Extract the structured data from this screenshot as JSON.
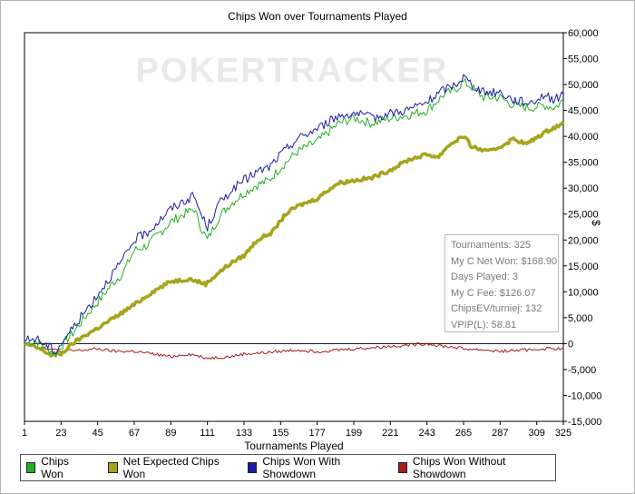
{
  "chart_data": {
    "type": "line",
    "title": "Chips Won over Tournaments Played",
    "xlabel": "Tournaments Played",
    "ylabel": "$",
    "xlim": [
      1,
      325
    ],
    "ylim": [
      -15000,
      60000
    ],
    "x_ticks": [
      1,
      23,
      45,
      67,
      89,
      111,
      133,
      155,
      177,
      199,
      221,
      243,
      265,
      287,
      309,
      325
    ],
    "y_ticks": [
      -15000,
      -10000,
      -5000,
      0,
      5000,
      10000,
      15000,
      20000,
      25000,
      30000,
      35000,
      40000,
      45000,
      50000,
      55000,
      60000
    ],
    "y_tick_labels": [
      "-15,000",
      "-10,000",
      "-5,000",
      "0",
      "5,000",
      "10,000",
      "15,000",
      "20,000",
      "25,000",
      "30,000",
      "35,000",
      "40,000",
      "45,000",
      "50,000",
      "55,000",
      "60,000"
    ],
    "legend_position": "bottom",
    "watermark": "POKERTRACKER",
    "series": [
      {
        "name": "Chips Won",
        "color": "#22b022",
        "points": [
          [
            1,
            0
          ],
          [
            8,
            500
          ],
          [
            15,
            -1000
          ],
          [
            20,
            -2000
          ],
          [
            23,
            -500
          ],
          [
            30,
            2000
          ],
          [
            37,
            5000
          ],
          [
            45,
            8000
          ],
          [
            55,
            12000
          ],
          [
            60,
            13500
          ],
          [
            67,
            18000
          ],
          [
            75,
            19000
          ],
          [
            89,
            23500
          ],
          [
            97,
            25000
          ],
          [
            103,
            26000
          ],
          [
            107,
            22500
          ],
          [
            111,
            20000
          ],
          [
            118,
            24500
          ],
          [
            125,
            27000
          ],
          [
            133,
            29000
          ],
          [
            140,
            30500
          ],
          [
            148,
            31500
          ],
          [
            155,
            34000
          ],
          [
            165,
            37000
          ],
          [
            177,
            39000
          ],
          [
            190,
            42500
          ],
          [
            199,
            43500
          ],
          [
            210,
            42500
          ],
          [
            221,
            43500
          ],
          [
            230,
            44000
          ],
          [
            243,
            45000
          ],
          [
            253,
            48000
          ],
          [
            260,
            49000
          ],
          [
            265,
            50500
          ],
          [
            270,
            49500
          ],
          [
            277,
            47500
          ],
          [
            287,
            47500
          ],
          [
            295,
            46000
          ],
          [
            305,
            45500
          ],
          [
            314,
            46000
          ],
          [
            320,
            45500
          ],
          [
            325,
            47000
          ]
        ]
      },
      {
        "name": "Net Expected Chips Won",
        "color": "#a5a51c",
        "points": [
          [
            1,
            0
          ],
          [
            10,
            -1000
          ],
          [
            17,
            -2200
          ],
          [
            23,
            -2000
          ],
          [
            30,
            0
          ],
          [
            37,
            1500
          ],
          [
            45,
            3000
          ],
          [
            55,
            5000
          ],
          [
            67,
            7500
          ],
          [
            78,
            10000
          ],
          [
            89,
            12000
          ],
          [
            100,
            12500
          ],
          [
            110,
            11500
          ],
          [
            117,
            13500
          ],
          [
            125,
            15500
          ],
          [
            133,
            17000
          ],
          [
            141,
            20000
          ],
          [
            150,
            21500
          ],
          [
            158,
            25000
          ],
          [
            165,
            26500
          ],
          [
            177,
            28000
          ],
          [
            185,
            30000
          ],
          [
            190,
            31000
          ],
          [
            199,
            31500
          ],
          [
            210,
            32000
          ],
          [
            221,
            33500
          ],
          [
            232,
            35500
          ],
          [
            243,
            36500
          ],
          [
            250,
            36000
          ],
          [
            255,
            38000
          ],
          [
            262,
            39500
          ],
          [
            265,
            40000
          ],
          [
            270,
            38000
          ],
          [
            280,
            37000
          ],
          [
            287,
            38000
          ],
          [
            295,
            39500
          ],
          [
            303,
            38500
          ],
          [
            310,
            40000
          ],
          [
            318,
            41500
          ],
          [
            325,
            42500
          ]
        ]
      },
      {
        "name": "Chips Won With Showdown",
        "color": "#1c1ca5",
        "points": [
          [
            1,
            500
          ],
          [
            8,
            1000
          ],
          [
            15,
            -500
          ],
          [
            20,
            -1500
          ],
          [
            23,
            0
          ],
          [
            30,
            3000
          ],
          [
            37,
            6000
          ],
          [
            45,
            9500
          ],
          [
            55,
            14000
          ],
          [
            60,
            16000
          ],
          [
            67,
            20000
          ],
          [
            75,
            21500
          ],
          [
            89,
            26000
          ],
          [
            97,
            27500
          ],
          [
            103,
            28500
          ],
          [
            107,
            25000
          ],
          [
            111,
            22500
          ],
          [
            118,
            27000
          ],
          [
            125,
            29500
          ],
          [
            133,
            31500
          ],
          [
            140,
            33000
          ],
          [
            148,
            34000
          ],
          [
            155,
            36500
          ],
          [
            165,
            39500
          ],
          [
            177,
            41500
          ],
          [
            190,
            44000
          ],
          [
            199,
            44500
          ],
          [
            210,
            43500
          ],
          [
            221,
            44500
          ],
          [
            230,
            45000
          ],
          [
            243,
            46500
          ],
          [
            253,
            49000
          ],
          [
            260,
            50000
          ],
          [
            265,
            51500
          ],
          [
            270,
            50000
          ],
          [
            277,
            48500
          ],
          [
            287,
            48500
          ],
          [
            295,
            47000
          ],
          [
            305,
            46500
          ],
          [
            314,
            48000
          ],
          [
            320,
            47000
          ],
          [
            325,
            48500
          ]
        ]
      },
      {
        "name": "Chips Won Without Showdown",
        "color": "#a51c1c",
        "points": [
          [
            1,
            0
          ],
          [
            10,
            -600
          ],
          [
            23,
            -1500
          ],
          [
            35,
            -1300
          ],
          [
            45,
            -1000
          ],
          [
            55,
            -1500
          ],
          [
            67,
            -1500
          ],
          [
            78,
            -2000
          ],
          [
            89,
            -2500
          ],
          [
            100,
            -2000
          ],
          [
            111,
            -2800
          ],
          [
            125,
            -2500
          ],
          [
            133,
            -2000
          ],
          [
            144,
            -1800
          ],
          [
            155,
            -1500
          ],
          [
            165,
            -1200
          ],
          [
            177,
            -1500
          ],
          [
            190,
            -1200
          ],
          [
            199,
            -1000
          ],
          [
            210,
            -800
          ],
          [
            221,
            -500
          ],
          [
            232,
            -300
          ],
          [
            243,
            0
          ],
          [
            253,
            -500
          ],
          [
            262,
            -800
          ],
          [
            265,
            -1000
          ],
          [
            277,
            -1200
          ],
          [
            287,
            -1500
          ],
          [
            298,
            -1300
          ],
          [
            309,
            -1100
          ],
          [
            318,
            -900
          ],
          [
            325,
            -1100
          ]
        ]
      }
    ]
  },
  "stats_box": {
    "tournaments_label": "Tournaments:",
    "tournaments_value": "325",
    "net_won_label": "My C Net Won:",
    "net_won_value": "$168.90",
    "days_label": "Days Played:",
    "days_value": "3",
    "fee_label": "My C Fee:",
    "fee_value": "$126.07",
    "chipsev_label": "ChipsEV/turniej:",
    "chipsev_value": "132",
    "vpip_label": "VPIP(L):",
    "vpip_value": "58.81"
  },
  "legend": [
    {
      "label": "Chips Won",
      "color": "#22b022"
    },
    {
      "label": "Net Expected Chips Won",
      "color": "#a5a51c"
    },
    {
      "label": "Chips Won With Showdown",
      "color": "#1c1ca5"
    },
    {
      "label": "Chips Won Without Showdown",
      "color": "#a51c1c"
    }
  ]
}
